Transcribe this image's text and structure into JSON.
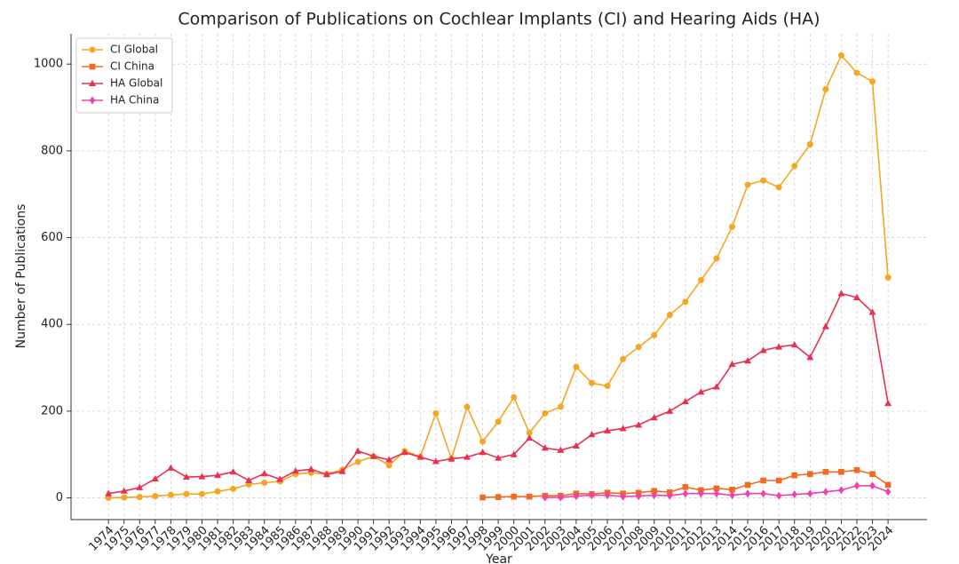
{
  "chart_data": {
    "type": "line",
    "title": "Comparison of Publications on Cochlear Implants (CI) and Hearing Aids (HA)",
    "xlabel": "Year",
    "ylabel": "Number of Publications",
    "x": [
      1974,
      1975,
      1976,
      1977,
      1978,
      1979,
      1980,
      1981,
      1982,
      1983,
      1984,
      1985,
      1986,
      1987,
      1988,
      1989,
      1990,
      1991,
      1992,
      1993,
      1994,
      1995,
      1996,
      1997,
      1998,
      1999,
      2000,
      2001,
      2002,
      2003,
      2004,
      2005,
      2006,
      2007,
      2008,
      2009,
      2010,
      2011,
      2012,
      2013,
      2014,
      2015,
      2016,
      2017,
      2018,
      2019,
      2020,
      2021,
      2022,
      2023,
      2024
    ],
    "xlim": [
      1971.6,
      2026.5
    ],
    "xticks": [
      1974,
      1975,
      1976,
      1977,
      1978,
      1979,
      1980,
      1981,
      1982,
      1983,
      1984,
      1985,
      1986,
      1987,
      1988,
      1989,
      1990,
      1991,
      1992,
      1993,
      1994,
      1995,
      1996,
      1997,
      1998,
      1999,
      2000,
      2001,
      2002,
      2003,
      2004,
      2005,
      2006,
      2007,
      2008,
      2009,
      2010,
      2011,
      2012,
      2013,
      2014,
      2015,
      2016,
      2017,
      2018,
      2019,
      2020,
      2021,
      2022,
      2023,
      2024
    ],
    "ylim": [
      -50,
      1070
    ],
    "yticks": [
      0,
      200,
      400,
      600,
      800,
      1000
    ],
    "grid": true,
    "legend": "upper left",
    "series": [
      {
        "name": "CI Global",
        "color": "#f5a623",
        "marker": "circle",
        "values": [
          0,
          1,
          2,
          4,
          7,
          9,
          9,
          15,
          21,
          31,
          35,
          38,
          55,
          58,
          55,
          65,
          83,
          96,
          75,
          108,
          95,
          195,
          90,
          210,
          130,
          176,
          232,
          150,
          195,
          210,
          302,
          265,
          258,
          320,
          348,
          375,
          422,
          452,
          502,
          552,
          625,
          722,
          732,
          716,
          765,
          815,
          942,
          1020,
          980,
          960,
          508
        ]
      },
      {
        "name": "CI China",
        "color": "#f26a21",
        "marker": "square",
        "values": [
          null,
          null,
          null,
          null,
          null,
          null,
          null,
          null,
          null,
          null,
          null,
          null,
          null,
          null,
          null,
          null,
          null,
          null,
          null,
          null,
          null,
          null,
          null,
          null,
          1,
          2,
          3,
          3,
          5,
          5,
          10,
          9,
          12,
          10,
          12,
          16,
          13,
          25,
          18,
          22,
          19,
          30,
          40,
          40,
          52,
          55,
          60,
          60,
          64,
          55,
          30
        ]
      },
      {
        "name": "HA Global",
        "color": "#e8304f",
        "marker": "triangle",
        "values": [
          10,
          16,
          24,
          44,
          69,
          48,
          49,
          52,
          60,
          40,
          56,
          43,
          62,
          66,
          54,
          61,
          108,
          96,
          88,
          105,
          94,
          84,
          90,
          94,
          105,
          92,
          100,
          138,
          115,
          110,
          120,
          146,
          155,
          160,
          168,
          185,
          200,
          222,
          244,
          256,
          308,
          316,
          340,
          348,
          353,
          324,
          395,
          471,
          462,
          428,
          218
        ]
      },
      {
        "name": "HA China",
        "color": "#f040b0",
        "marker": "diamond",
        "values": [
          null,
          null,
          null,
          null,
          null,
          null,
          null,
          null,
          null,
          null,
          null,
          null,
          null,
          null,
          null,
          null,
          null,
          null,
          null,
          null,
          null,
          null,
          null,
          null,
          null,
          null,
          null,
          null,
          1,
          1,
          4,
          6,
          6,
          3,
          4,
          6,
          5,
          10,
          10,
          10,
          6,
          10,
          10,
          5,
          8,
          10,
          14,
          18,
          28,
          28,
          14
        ]
      }
    ]
  }
}
